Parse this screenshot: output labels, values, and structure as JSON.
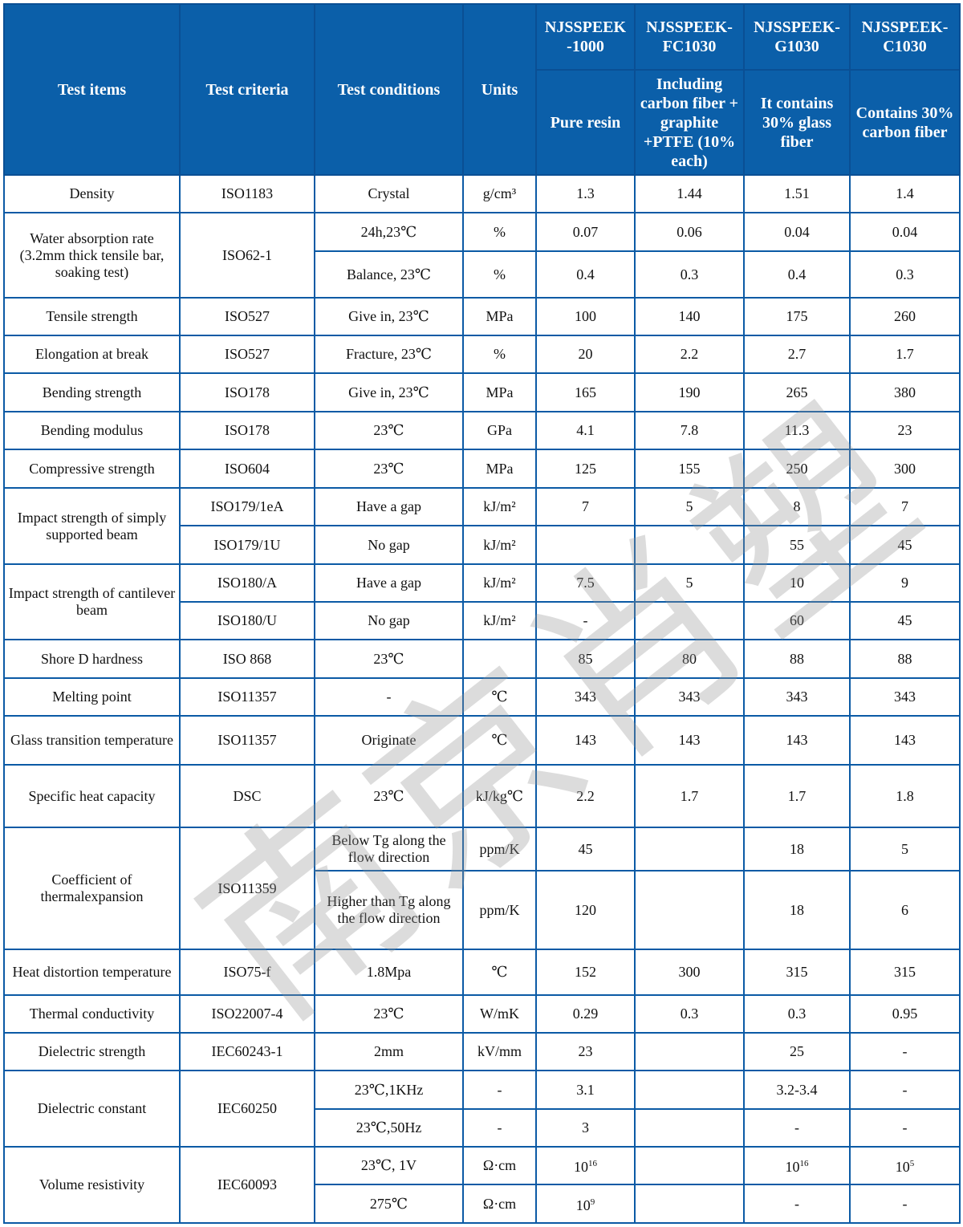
{
  "watermark": "南京肖塑",
  "colors": {
    "header_bg": "#0b5fa9",
    "border": "#0b5aa5",
    "header_text": "#ffffff"
  },
  "table": {
    "rows": [
      {
        "header": true,
        "cells": [
          {
            "t": "Test items",
            "rs": 2
          },
          {
            "t": "Test criteria",
            "rs": 2
          },
          {
            "t": "Test conditions",
            "rs": 2
          },
          {
            "t": "Units",
            "rs": 2
          },
          {
            "t": "NJSSPEEK-1000",
            "model": true
          },
          {
            "t": "NJSSPEEK-FC1030",
            "model": true
          },
          {
            "t": "NJSSPEEK-G1030",
            "model": true
          },
          {
            "t": "NJSSPEEK-C1030",
            "model": true
          }
        ]
      },
      {
        "header": true,
        "cells": [
          {
            "t": "Pure resin"
          },
          {
            "t": "Including carbon fiber + graphite +PTFE (10% each)"
          },
          {
            "t": "It contains 30% glass fiber"
          },
          {
            "t": "Contains 30% carbon fiber"
          }
        ]
      },
      {
        "cells": [
          {
            "t": "Density"
          },
          {
            "t": "ISO1183"
          },
          {
            "t": "Crystal"
          },
          {
            "t": "g/cm³"
          },
          {
            "t": "1.3"
          },
          {
            "t": "1.44"
          },
          {
            "t": "1.51"
          },
          {
            "t": "1.4"
          }
        ]
      },
      {
        "cells": [
          {
            "t": "Water absorption rate (3.2mm thick tensile bar, soaking test)",
            "rs": 2
          },
          {
            "t": "ISO62-1",
            "rs": 2
          },
          {
            "t": "24h,23℃"
          },
          {
            "t": "%"
          },
          {
            "t": "0.07"
          },
          {
            "t": "0.06"
          },
          {
            "t": "0.04"
          },
          {
            "t": "0.04"
          }
        ]
      },
      {
        "cells": [
          {
            "t": "Balance, 23℃"
          },
          {
            "t": "%"
          },
          {
            "t": "0.4"
          },
          {
            "t": "0.3"
          },
          {
            "t": "0.4"
          },
          {
            "t": "0.3"
          }
        ]
      },
      {
        "cells": [
          {
            "t": "Tensile strength"
          },
          {
            "t": "ISO527"
          },
          {
            "t": "Give in, 23℃"
          },
          {
            "t": "MPa"
          },
          {
            "t": "100"
          },
          {
            "t": "140"
          },
          {
            "t": "175"
          },
          {
            "t": "260"
          }
        ]
      },
      {
        "cells": [
          {
            "t": "Elongation at break"
          },
          {
            "t": "ISO527"
          },
          {
            "t": "Fracture, 23℃"
          },
          {
            "t": "%"
          },
          {
            "t": "20"
          },
          {
            "t": "2.2"
          },
          {
            "t": "2.7"
          },
          {
            "t": "1.7"
          }
        ]
      },
      {
        "cells": [
          {
            "t": "Bending strength"
          },
          {
            "t": "ISO178"
          },
          {
            "t": "Give in, 23℃"
          },
          {
            "t": "MPa"
          },
          {
            "t": "165"
          },
          {
            "t": "190"
          },
          {
            "t": "265"
          },
          {
            "t": "380"
          }
        ]
      },
      {
        "cells": [
          {
            "t": "Bending modulus"
          },
          {
            "t": "ISO178"
          },
          {
            "t": "23℃"
          },
          {
            "t": "GPa"
          },
          {
            "t": "4.1"
          },
          {
            "t": "7.8"
          },
          {
            "t": "11.3"
          },
          {
            "t": "23"
          }
        ]
      },
      {
        "cells": [
          {
            "t": "Compressive strength"
          },
          {
            "t": "ISO604"
          },
          {
            "t": "23℃"
          },
          {
            "t": "MPa"
          },
          {
            "t": "125"
          },
          {
            "t": "155"
          },
          {
            "t": "250"
          },
          {
            "t": "300"
          }
        ]
      },
      {
        "cells": [
          {
            "t": "Impact strength of simply supported beam",
            "rs": 2
          },
          {
            "t": "ISO179/1eA"
          },
          {
            "t": "Have a gap"
          },
          {
            "t": "kJ/m²"
          },
          {
            "t": "7"
          },
          {
            "t": "5"
          },
          {
            "t": "8"
          },
          {
            "t": "7"
          }
        ]
      },
      {
        "cells": [
          {
            "t": "ISO179/1U"
          },
          {
            "t": "No gap"
          },
          {
            "t": "kJ/m²"
          },
          {
            "t": ""
          },
          {
            "t": ""
          },
          {
            "t": "55"
          },
          {
            "t": "45"
          }
        ]
      },
      {
        "cells": [
          {
            "t": "Impact strength of cantilever beam",
            "rs": 2
          },
          {
            "t": "ISO180/A"
          },
          {
            "t": "Have a gap"
          },
          {
            "t": "kJ/m²"
          },
          {
            "t": "7.5"
          },
          {
            "t": "5"
          },
          {
            "t": "10"
          },
          {
            "t": "9"
          }
        ]
      },
      {
        "cells": [
          {
            "t": "ISO180/U"
          },
          {
            "t": "No gap"
          },
          {
            "t": "kJ/m²"
          },
          {
            "t": "-"
          },
          {
            "t": ""
          },
          {
            "t": "60"
          },
          {
            "t": "45"
          }
        ]
      },
      {
        "cells": [
          {
            "t": "Shore D hardness"
          },
          {
            "t": "ISO 868"
          },
          {
            "t": "23℃"
          },
          {
            "t": ""
          },
          {
            "t": "85"
          },
          {
            "t": "80"
          },
          {
            "t": "88"
          },
          {
            "t": "88"
          }
        ]
      },
      {
        "cells": [
          {
            "t": "Melting point"
          },
          {
            "t": "ISO11357"
          },
          {
            "t": "-"
          },
          {
            "t": "℃"
          },
          {
            "t": "343"
          },
          {
            "t": "343"
          },
          {
            "t": "343"
          },
          {
            "t": "343"
          }
        ]
      },
      {
        "cells": [
          {
            "t": "Glass transition temperature"
          },
          {
            "t": "ISO11357"
          },
          {
            "t": "Originate"
          },
          {
            "t": "℃"
          },
          {
            "t": "143"
          },
          {
            "t": "143"
          },
          {
            "t": "143"
          },
          {
            "t": "143"
          }
        ]
      },
      {
        "cells": [
          {
            "t": "Specific heat capacity"
          },
          {
            "t": "DSC"
          },
          {
            "t": "23℃"
          },
          {
            "t": "kJ/kg℃"
          },
          {
            "t": "2.2"
          },
          {
            "t": "1.7"
          },
          {
            "t": "1.7"
          },
          {
            "t": "1.8"
          }
        ]
      },
      {
        "cells": [
          {
            "t": "Coefficient of thermalexpansion",
            "rs": 2
          },
          {
            "t": "ISO11359",
            "rs": 2
          },
          {
            "t": "Below Tg along the flow direction"
          },
          {
            "t": "ppm/K"
          },
          {
            "t": "45"
          },
          {
            "t": ""
          },
          {
            "t": "18"
          },
          {
            "t": "5"
          }
        ]
      },
      {
        "cells": [
          {
            "t": "Higher than Tg along the flow direction"
          },
          {
            "t": "ppm/K"
          },
          {
            "t": "120"
          },
          {
            "t": ""
          },
          {
            "t": "18"
          },
          {
            "t": "6"
          }
        ]
      },
      {
        "cells": [
          {
            "t": "Heat distortion temperature"
          },
          {
            "t": "ISO75-f"
          },
          {
            "t": "1.8Mpa"
          },
          {
            "t": "℃"
          },
          {
            "t": "152"
          },
          {
            "t": "300"
          },
          {
            "t": "315"
          },
          {
            "t": "315"
          }
        ]
      },
      {
        "cells": [
          {
            "t": "Thermal conductivity"
          },
          {
            "t": "ISO22007-4"
          },
          {
            "t": "23℃"
          },
          {
            "t": "W/mK"
          },
          {
            "t": "0.29"
          },
          {
            "t": "0.3"
          },
          {
            "t": "0.3"
          },
          {
            "t": "0.95"
          }
        ]
      },
      {
        "cells": [
          {
            "t": "Dielectric strength"
          },
          {
            "t": "IEC60243-1"
          },
          {
            "t": "2mm"
          },
          {
            "t": "kV/mm"
          },
          {
            "t": "23"
          },
          {
            "t": ""
          },
          {
            "t": "25"
          },
          {
            "t": "-"
          }
        ]
      },
      {
        "cells": [
          {
            "t": "Dielectric constant",
            "rs": 2
          },
          {
            "t": "IEC60250",
            "rs": 2
          },
          {
            "t": "23℃,1KHz"
          },
          {
            "t": "-"
          },
          {
            "t": "3.1"
          },
          {
            "t": ""
          },
          {
            "t": "3.2-3.4"
          },
          {
            "t": "-"
          }
        ]
      },
      {
        "cells": [
          {
            "t": "23℃,50Hz"
          },
          {
            "t": "-"
          },
          {
            "t": "3"
          },
          {
            "t": ""
          },
          {
            "t": "-"
          },
          {
            "t": "-"
          }
        ]
      },
      {
        "cells": [
          {
            "t": "Volume resistivity",
            "rs": 2
          },
          {
            "t": "IEC60093",
            "rs": 2
          },
          {
            "t": "23℃, 1V"
          },
          {
            "t": "Ω·cm"
          },
          {
            "t": "10",
            "sup": "16"
          },
          {
            "t": ""
          },
          {
            "t": "10",
            "sup": "16"
          },
          {
            "t": "10",
            "sup": "5"
          }
        ]
      },
      {
        "cells": [
          {
            "t": "275℃"
          },
          {
            "t": "Ω·cm"
          },
          {
            "t": "10",
            "sup": "9"
          },
          {
            "t": ""
          },
          {
            "t": "-"
          },
          {
            "t": "-"
          }
        ]
      }
    ]
  }
}
